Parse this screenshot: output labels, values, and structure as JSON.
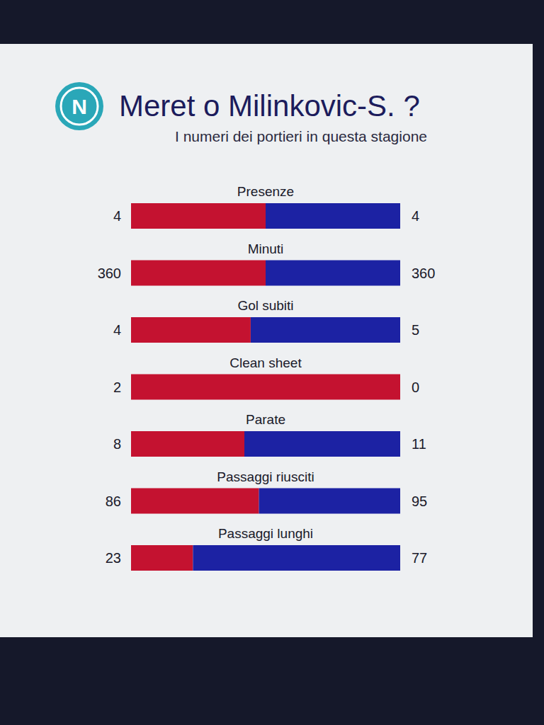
{
  "chart_data": {
    "type": "bar",
    "orientation": "horizontal",
    "stacked": true,
    "data_labels": true,
    "tick_labels": false,
    "grid": false,
    "logo": "N",
    "title": "Meret o Milinkovic-S. ?",
    "subtitle": "I numeri dei portieri in questa stagione",
    "categories": [
      "Presenze",
      "Minuti",
      "Gol subiti",
      "Clean sheet",
      "Parate",
      "Passaggi riusciti",
      "Passaggi lunghi"
    ],
    "series": [
      {
        "color": "#c41230",
        "values": [
          4,
          360,
          4,
          2,
          8,
          86,
          23
        ]
      },
      {
        "color": "#1c22a3",
        "values": [
          4,
          360,
          5,
          0,
          11,
          95,
          77
        ]
      }
    ]
  }
}
